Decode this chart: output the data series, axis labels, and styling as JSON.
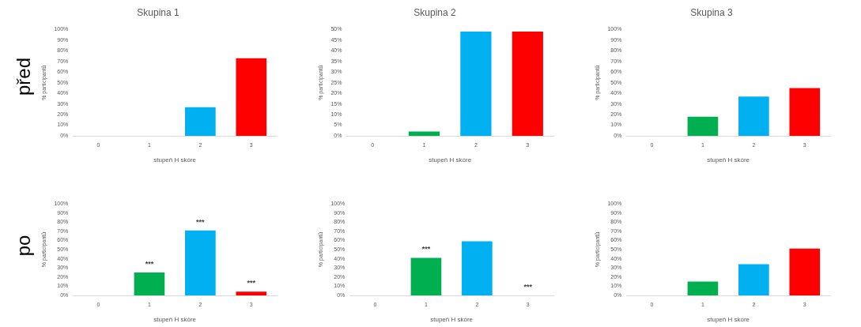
{
  "chart_data": [
    {
      "type": "bar",
      "title": "Skupina 1",
      "xlabel": "stupeň H skóre",
      "ylabel": "% participantů",
      "categories": [
        "0",
        "1",
        "2",
        "3"
      ],
      "values": [
        0,
        0,
        27,
        73
      ],
      "colors": [
        "#00b050",
        "#00b050",
        "#00b0f0",
        "#ff0000"
      ],
      "ylim": [
        0,
        100
      ],
      "yticks": [
        {
          "value": 0,
          "label": "0%"
        },
        {
          "value": 10,
          "label": "10%"
        },
        {
          "value": 20,
          "label": "20%"
        },
        {
          "value": 30,
          "label": "30%"
        },
        {
          "value": 40,
          "label": "40%"
        },
        {
          "value": 50,
          "label": "50%"
        },
        {
          "value": 60,
          "label": "60%"
        },
        {
          "value": 70,
          "label": "70%"
        },
        {
          "value": 80,
          "label": "80%"
        },
        {
          "value": 90,
          "label": "90%"
        },
        {
          "value": 100,
          "label": "100%"
        }
      ],
      "annotations": [
        "před"
      ],
      "legend": false
    },
    {
      "type": "bar",
      "title": "Skupina 2",
      "xlabel": "stupeň H skóre",
      "ylabel": "% participantů",
      "categories": [
        "0",
        "1",
        "2",
        "3"
      ],
      "values": [
        0,
        2,
        49,
        49
      ],
      "colors": [
        "#00b050",
        "#00b050",
        "#00b0f0",
        "#ff0000"
      ],
      "ylim": [
        0,
        50
      ],
      "yticks": [
        {
          "value": 0,
          "label": "0%"
        },
        {
          "value": 5,
          "label": "5%"
        },
        {
          "value": 10,
          "label": "10%"
        },
        {
          "value": 15,
          "label": "15%"
        },
        {
          "value": 20,
          "label": "20%"
        },
        {
          "value": 25,
          "label": "25%"
        },
        {
          "value": 30,
          "label": "30%"
        },
        {
          "value": 35,
          "label": "35%"
        },
        {
          "value": 40,
          "label": "40%"
        },
        {
          "value": 45,
          "label": "45%"
        },
        {
          "value": 50,
          "label": "50%"
        }
      ],
      "legend": false
    },
    {
      "type": "bar",
      "title": "Skupina 3",
      "xlabel": "stupeň H skóre",
      "ylabel": "% participantů",
      "categories": [
        "0",
        "1",
        "2",
        "3"
      ],
      "values": [
        0,
        18,
        37,
        45
      ],
      "colors": [
        "#00b050",
        "#00b050",
        "#00b0f0",
        "#ff0000"
      ],
      "ylim": [
        0,
        100
      ],
      "yticks": [
        {
          "value": 0,
          "label": "0%"
        },
        {
          "value": 10,
          "label": "10%"
        },
        {
          "value": 20,
          "label": "20%"
        },
        {
          "value": 30,
          "label": "30%"
        },
        {
          "value": 40,
          "label": "40%"
        },
        {
          "value": 50,
          "label": "50%"
        },
        {
          "value": 60,
          "label": "60%"
        },
        {
          "value": 70,
          "label": "70%"
        },
        {
          "value": 80,
          "label": "80%"
        },
        {
          "value": 90,
          "label": "90%"
        },
        {
          "value": 100,
          "label": "100%"
        }
      ],
      "legend": false
    },
    {
      "type": "bar",
      "xlabel": "stupeň H skóre",
      "ylabel": "% participantů",
      "categories": [
        "0",
        "1",
        "2",
        "3"
      ],
      "values": [
        0,
        25,
        71,
        4
      ],
      "colors": [
        "#00b050",
        "#00b050",
        "#00b0f0",
        "#ff0000"
      ],
      "ylim": [
        0,
        100
      ],
      "yticks": [
        {
          "value": 0,
          "label": "0%"
        },
        {
          "value": 10,
          "label": "10%"
        },
        {
          "value": 20,
          "label": "20%"
        },
        {
          "value": 30,
          "label": "30%"
        },
        {
          "value": 40,
          "label": "40%"
        },
        {
          "value": 50,
          "label": "50%"
        },
        {
          "value": 60,
          "label": "60%"
        },
        {
          "value": 70,
          "label": "70%"
        },
        {
          "value": 80,
          "label": "80%"
        },
        {
          "value": 90,
          "label": "90%"
        },
        {
          "value": 100,
          "label": "100%"
        }
      ],
      "annotations": [
        "po",
        {
          "text": "***",
          "x": "1",
          "y": 25
        },
        {
          "text": "***",
          "x": "2",
          "y": 71
        },
        {
          "text": "***",
          "x": "3",
          "y": 4
        }
      ],
      "legend": false
    },
    {
      "type": "bar",
      "xlabel": "stupeň H skóre",
      "ylabel": "% participantů",
      "categories": [
        "0",
        "1",
        "2",
        "3"
      ],
      "values": [
        0,
        41,
        59,
        0
      ],
      "colors": [
        "#00b050",
        "#00b050",
        "#00b0f0",
        "#ff0000"
      ],
      "ylim": [
        0,
        100
      ],
      "yticks": [
        {
          "value": 0,
          "label": "0%"
        },
        {
          "value": 10,
          "label": "10%"
        },
        {
          "value": 20,
          "label": "20%"
        },
        {
          "value": 30,
          "label": "30%"
        },
        {
          "value": 40,
          "label": "40%"
        },
        {
          "value": 50,
          "label": "50%"
        },
        {
          "value": 60,
          "label": "60%"
        },
        {
          "value": 70,
          "label": "70%"
        },
        {
          "value": 80,
          "label": "80%"
        },
        {
          "value": 90,
          "label": "90%"
        },
        {
          "value": 100,
          "label": "100%"
        }
      ],
      "annotations": [
        {
          "text": "***",
          "x": "1",
          "y": 41
        },
        {
          "text": "***",
          "x": "3",
          "y": 0
        }
      ],
      "legend": false
    },
    {
      "type": "bar",
      "xlabel": "stupeň H skóre",
      "ylabel": "% participantů",
      "categories": [
        "0",
        "1",
        "2",
        "3"
      ],
      "values": [
        0,
        15,
        34,
        51
      ],
      "colors": [
        "#00b050",
        "#00b050",
        "#00b0f0",
        "#ff0000"
      ],
      "ylim": [
        0,
        100
      ],
      "yticks": [
        {
          "value": 0,
          "label": "0%"
        },
        {
          "value": 10,
          "label": "10%"
        },
        {
          "value": 20,
          "label": "20%"
        },
        {
          "value": 30,
          "label": "30%"
        },
        {
          "value": 40,
          "label": "40%"
        },
        {
          "value": 50,
          "label": "50%"
        },
        {
          "value": 60,
          "label": "60%"
        },
        {
          "value": 70,
          "label": "70%"
        },
        {
          "value": 80,
          "label": "80%"
        },
        {
          "value": 90,
          "label": "90%"
        },
        {
          "value": 100,
          "label": "100%"
        }
      ],
      "legend": false
    }
  ]
}
